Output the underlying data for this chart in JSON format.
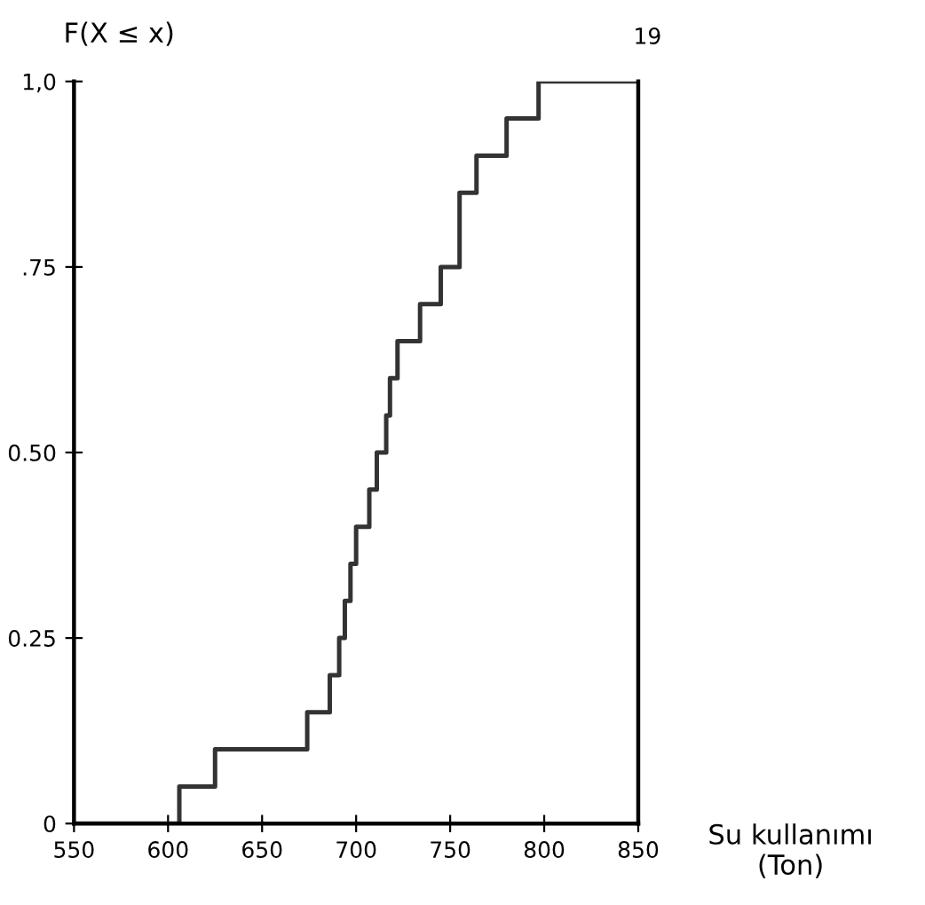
{
  "chart_data": {
    "type": "step",
    "ylabel": "F(X ≤ x)",
    "xlabel": "Su kullanımı\n(Ton)",
    "annotations": [
      "19"
    ],
    "series": [
      {
        "color": "#333333",
        "x": [
          550,
          606,
          625,
          674,
          686,
          691,
          694,
          697,
          700,
          707,
          711,
          716,
          718,
          722,
          734,
          745,
          755,
          764,
          780,
          797,
          850
        ],
        "values": [
          0,
          0.05,
          0.1,
          0.15,
          0.2,
          0.25,
          0.3,
          0.35,
          0.4,
          0.45,
          0.5,
          0.55,
          0.6,
          0.65,
          0.7,
          0.75,
          0.85,
          0.9,
          0.95,
          1.0,
          1.0
        ]
      }
    ],
    "xlim": [
      550,
      850
    ],
    "ylim": [
      0,
      1.0
    ],
    "xticks": [
      550,
      600,
      650,
      700,
      750,
      800,
      850
    ],
    "yticks": [
      0,
      0.25,
      {
        "value": 0.5,
        "label": "0.50"
      },
      {
        "value": 0.75,
        "label": ".75"
      },
      {
        "value": 1.0,
        "label": "1,0"
      }
    ],
    "grid": false,
    "legend": false,
    "line_style": "solid"
  }
}
